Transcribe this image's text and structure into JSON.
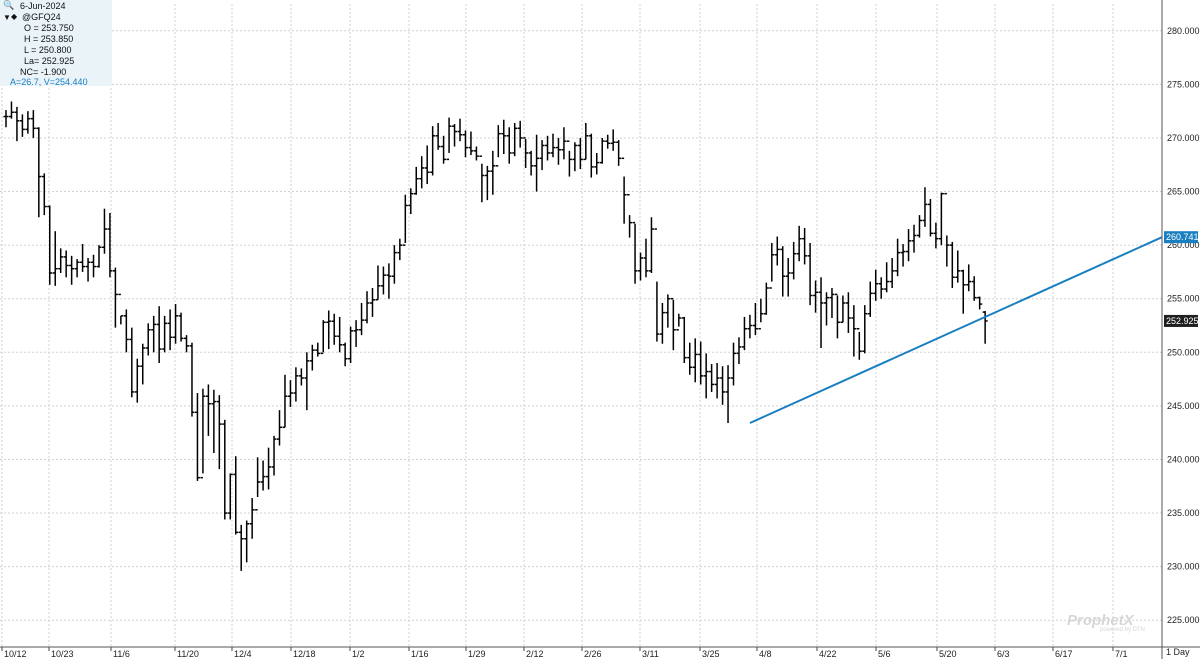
{
  "info": {
    "date": "6-Jun-2024",
    "symbol": "@GFQ24",
    "open": "O = 253.750",
    "high": "H = 253.850",
    "low": "L = 250.800",
    "last": "La= 252.925",
    "net_change": "NC= -1.900",
    "stats": "A=26.7, V=254.440"
  },
  "branding": {
    "name": "ProphetX",
    "sub": "powered by DTN"
  },
  "interval_label": "1 Day",
  "colors": {
    "bars": "#000000",
    "trendline": "#1a7fc0",
    "grid": "#d0d0d0",
    "last_price_bg": "#1f1f1f",
    "trend_label_bg": "#1a7fc0"
  },
  "chart_data": {
    "type": "ohlc",
    "title": "",
    "ylim": [
      222.5,
      282.5
    ],
    "y_ticks": [
      "225.000",
      "230.000",
      "235.000",
      "240.000",
      "245.000",
      "250.000",
      "255.000",
      "260.000",
      "265.000",
      "270.000",
      "275.000",
      "280.000"
    ],
    "x_ticks": [
      "10/12",
      "10/23",
      "11/6",
      "11/20",
      "12/4",
      "12/18",
      "1/2",
      "1/16",
      "1/29",
      "2/12",
      "2/26",
      "3/11",
      "3/25",
      "4/8",
      "4/22",
      "5/6",
      "5/20",
      "6/3",
      "6/17",
      "7/1"
    ],
    "last_price_label": "252.925",
    "trendline_label": "260.741",
    "trendline": {
      "start": {
        "bar": 136,
        "value": 243.4
      },
      "end_value": 260.741
    },
    "bars": [
      [
        272.0,
        272.6,
        271.0,
        272.0
      ],
      [
        272.0,
        273.4,
        271.8,
        272.4
      ],
      [
        272.4,
        272.9,
        269.7,
        271.6
      ],
      [
        271.6,
        272.2,
        270.1,
        270.8
      ],
      [
        270.8,
        272.5,
        270.4,
        271.8
      ],
      [
        271.8,
        272.6,
        270.0,
        270.9
      ],
      [
        270.9,
        271.0,
        262.6,
        266.4
      ],
      [
        266.4,
        266.7,
        262.8,
        263.6
      ],
      [
        263.6,
        263.7,
        256.3,
        257.4
      ],
      [
        257.4,
        261.3,
        256.2,
        257.8
      ],
      [
        257.8,
        259.7,
        257.4,
        258.9
      ],
      [
        258.9,
        259.5,
        257.0,
        258.1
      ],
      [
        258.1,
        259.0,
        256.3,
        257.8
      ],
      [
        257.8,
        258.7,
        257.0,
        258.4
      ],
      [
        258.4,
        260.1,
        257.5,
        258.0
      ],
      [
        258.0,
        258.8,
        256.6,
        258.4
      ],
      [
        258.4,
        259.1,
        257.0,
        258.0
      ],
      [
        258.0,
        260.0,
        257.9,
        259.8
      ],
      [
        259.8,
        263.4,
        259.2,
        261.5
      ],
      [
        261.5,
        263.0,
        257.0,
        257.6
      ],
      [
        257.6,
        257.9,
        252.3,
        255.4
      ],
      [
        255.4,
        253.4,
        252.6,
        253.4
      ],
      [
        253.4,
        254.0,
        250.0,
        251.2
      ],
      [
        251.2,
        252.3,
        245.8,
        246.3
      ],
      [
        246.3,
        249.4,
        245.3,
        248.7
      ],
      [
        248.7,
        250.8,
        247.0,
        250.4
      ],
      [
        250.4,
        252.7,
        249.7,
        252.1
      ],
      [
        252.1,
        253.4,
        250.0,
        252.6
      ],
      [
        252.6,
        254.3,
        249.0,
        250.3
      ],
      [
        250.3,
        253.4,
        250.0,
        252.7
      ],
      [
        252.7,
        254.0,
        250.2,
        251.4
      ],
      [
        251.4,
        254.5,
        250.8,
        253.4
      ],
      [
        253.4,
        253.7,
        251.0,
        251.3
      ],
      [
        251.3,
        251.6,
        250.0,
        250.6
      ],
      [
        250.6,
        250.9,
        244.0,
        244.4
      ],
      [
        244.4,
        246.2,
        238.0,
        238.3
      ],
      [
        238.3,
        246.6,
        238.7,
        245.9
      ],
      [
        245.9,
        247.0,
        242.2,
        245.2
      ],
      [
        245.2,
        246.5,
        240.6,
        245.4
      ],
      [
        245.4,
        246.0,
        239.1,
        243.3
      ],
      [
        243.3,
        243.7,
        234.4,
        235.0
      ],
      [
        235.0,
        238.7,
        234.4,
        238.6
      ],
      [
        238.6,
        240.3,
        233.0,
        233.2
      ],
      [
        233.2,
        233.9,
        229.6,
        232.6
      ],
      [
        232.6,
        234.3,
        230.4,
        234.0
      ],
      [
        234.0,
        236.4,
        232.6,
        235.3
      ],
      [
        235.3,
        240.2,
        236.5,
        237.9
      ],
      [
        237.9,
        239.9,
        237.1,
        238.4
      ],
      [
        238.4,
        241.1,
        237.2,
        239.3
      ],
      [
        239.3,
        242.2,
        238.5,
        241.9
      ],
      [
        241.9,
        244.6,
        241.3,
        243.0
      ],
      [
        243.0,
        247.9,
        243.0,
        245.9
      ],
      [
        245.9,
        247.4,
        244.9,
        246.2
      ],
      [
        246.2,
        248.6,
        245.4,
        247.8
      ],
      [
        247.8,
        248.5,
        246.9,
        247.6
      ],
      [
        247.6,
        250.0,
        244.6,
        249.2
      ],
      [
        249.2,
        250.7,
        248.3,
        250.2
      ],
      [
        250.2,
        250.9,
        249.6,
        249.9
      ],
      [
        249.9,
        253.0,
        250.0,
        252.8
      ],
      [
        252.8,
        253.9,
        250.3,
        252.9
      ],
      [
        252.9,
        253.6,
        250.7,
        251.5
      ],
      [
        251.5,
        253.3,
        250.0,
        250.7
      ],
      [
        250.7,
        250.9,
        248.7,
        249.4
      ],
      [
        249.4,
        252.4,
        249.0,
        252.0
      ],
      [
        252.0,
        253.0,
        250.5,
        252.1
      ],
      [
        252.1,
        254.6,
        251.6,
        253.0
      ],
      [
        253.0,
        255.7,
        252.7,
        254.6
      ],
      [
        254.6,
        256.0,
        253.3,
        254.9
      ],
      [
        254.9,
        258.1,
        254.9,
        256.2
      ],
      [
        256.2,
        258.0,
        255.4,
        257.2
      ],
      [
        257.2,
        258.3,
        255.0,
        257.1
      ],
      [
        257.1,
        260.0,
        256.4,
        259.3
      ],
      [
        259.3,
        260.6,
        258.6,
        260.0
      ],
      [
        260.0,
        264.7,
        260.2,
        263.7
      ],
      [
        263.7,
        265.3,
        262.9,
        264.8
      ],
      [
        264.8,
        267.3,
        264.7,
        266.2
      ],
      [
        266.2,
        268.3,
        265.3,
        267.2
      ],
      [
        267.2,
        269.3,
        265.7,
        266.8
      ],
      [
        266.8,
        271.1,
        266.5,
        270.2
      ],
      [
        270.2,
        271.4,
        268.9,
        269.2
      ],
      [
        269.2,
        270.2,
        267.6,
        268.0
      ],
      [
        268.0,
        271.9,
        268.6,
        271.1
      ],
      [
        271.1,
        271.3,
        269.2,
        270.6
      ],
      [
        270.6,
        271.8,
        269.7,
        270.3
      ],
      [
        270.3,
        270.7,
        268.2,
        269.1
      ],
      [
        269.1,
        270.6,
        268.4,
        268.8
      ],
      [
        268.8,
        269.2,
        267.9,
        268.3
      ],
      [
        268.3,
        267.6,
        264.0,
        266.5
      ],
      [
        266.5,
        267.4,
        264.2,
        266.9
      ],
      [
        266.9,
        268.8,
        264.7,
        267.4
      ],
      [
        267.4,
        271.2,
        268.2,
        270.4
      ],
      [
        270.4,
        271.7,
        268.5,
        270.2
      ],
      [
        270.2,
        271.0,
        267.6,
        268.6
      ],
      [
        268.6,
        271.4,
        268.3,
        270.9
      ],
      [
        270.9,
        271.6,
        269.1,
        270.0
      ],
      [
        270.0,
        269.9,
        267.2,
        268.6
      ],
      [
        268.6,
        268.8,
        266.5,
        267.4
      ],
      [
        267.4,
        270.3,
        265.0,
        268.1
      ],
      [
        268.1,
        269.8,
        267.0,
        269.3
      ],
      [
        269.3,
        270.2,
        267.9,
        268.6
      ],
      [
        268.6,
        270.4,
        268.2,
        269.1
      ],
      [
        269.1,
        270.0,
        267.5,
        268.9
      ],
      [
        268.9,
        271.0,
        268.0,
        269.7
      ],
      [
        269.7,
        268.8,
        266.4,
        268.0
      ],
      [
        268.0,
        269.6,
        266.9,
        269.3
      ],
      [
        269.3,
        270.0,
        267.1,
        268.0
      ],
      [
        268.0,
        271.4,
        268.0,
        270.2
      ],
      [
        270.2,
        270.4,
        266.3,
        267.3
      ],
      [
        267.3,
        268.6,
        266.6,
        267.7
      ],
      [
        267.7,
        270.0,
        267.6,
        269.7
      ],
      [
        269.7,
        270.3,
        269.0,
        269.5
      ],
      [
        269.5,
        270.8,
        268.8,
        269.6
      ],
      [
        269.6,
        269.8,
        267.4,
        268.1
      ],
      [
        268.1,
        266.4,
        262.0,
        264.7
      ],
      [
        264.7,
        262.8,
        260.7,
        262.1
      ],
      [
        262.1,
        262.0,
        256.4,
        257.6
      ],
      [
        257.6,
        259.3,
        256.7,
        258.8
      ],
      [
        258.8,
        260.6,
        257.0,
        257.6
      ],
      [
        257.6,
        262.6,
        257.4,
        261.5
      ],
      [
        261.5,
        256.6,
        251.0,
        251.7
      ],
      [
        251.7,
        254.6,
        250.8,
        253.7
      ],
      [
        253.7,
        255.4,
        252.3,
        255.0
      ],
      [
        255.0,
        254.9,
        250.2,
        252.1
      ],
      [
        252.1,
        253.6,
        252.4,
        253.2
      ],
      [
        253.2,
        253.3,
        249.0,
        249.5
      ],
      [
        249.5,
        250.9,
        247.9,
        248.6
      ],
      [
        248.6,
        251.3,
        247.2,
        249.8
      ],
      [
        249.8,
        251.0,
        247.0,
        247.8
      ],
      [
        247.8,
        249.9,
        245.7,
        248.2
      ],
      [
        248.2,
        248.9,
        246.3,
        247.0
      ],
      [
        247.0,
        249.0,
        245.7,
        247.6
      ],
      [
        247.6,
        248.7,
        245.1,
        246.3
      ],
      [
        246.3,
        248.8,
        243.4,
        247.6
      ],
      [
        247.6,
        250.9,
        246.9,
        249.9
      ],
      [
        249.9,
        251.4,
        248.9,
        250.5
      ],
      [
        250.5,
        253.3,
        250.2,
        252.2
      ],
      [
        252.2,
        253.5,
        251.3,
        252.5
      ],
      [
        252.5,
        254.6,
        251.6,
        252.2
      ],
      [
        252.2,
        255.0,
        252.8,
        253.6
      ],
      [
        253.6,
        256.5,
        253.5,
        256.0
      ],
      [
        256.0,
        260.2,
        256.6,
        259.1
      ],
      [
        259.1,
        260.8,
        258.1,
        259.6
      ],
      [
        259.6,
        259.9,
        255.2,
        257.1
      ],
      [
        257.1,
        258.8,
        255.2,
        257.4
      ],
      [
        257.4,
        260.3,
        256.8,
        259.2
      ],
      [
        259.2,
        261.8,
        258.5,
        260.6
      ],
      [
        260.6,
        261.6,
        258.2,
        259.0
      ],
      [
        259.0,
        260.2,
        254.4,
        255.3
      ],
      [
        255.3,
        256.7,
        253.7,
        255.6
      ],
      [
        255.6,
        257.0,
        250.4,
        254.6
      ],
      [
        254.6,
        255.6,
        252.5,
        255.1
      ],
      [
        255.1,
        256.0,
        253.2,
        255.4
      ],
      [
        255.4,
        255.3,
        251.3,
        252.8
      ],
      [
        252.8,
        255.3,
        252.8,
        254.6
      ],
      [
        254.6,
        255.6,
        251.8,
        253.2
      ],
      [
        253.2,
        254.4,
        249.6,
        252.2
      ],
      [
        252.2,
        251.9,
        249.3,
        250.1
      ],
      [
        250.1,
        254.4,
        249.9,
        253.6
      ],
      [
        253.6,
        256.6,
        253.3,
        255.5
      ],
      [
        255.5,
        257.7,
        254.8,
        256.4
      ],
      [
        256.4,
        257.0,
        255.0,
        255.9
      ],
      [
        255.9,
        258.4,
        255.6,
        256.6
      ],
      [
        256.6,
        258.8,
        256.0,
        257.6
      ],
      [
        257.6,
        260.6,
        257.1,
        259.3
      ],
      [
        259.3,
        260.1,
        258.0,
        259.4
      ],
      [
        259.4,
        261.5,
        258.5,
        260.4
      ],
      [
        260.4,
        261.9,
        259.3,
        260.9
      ],
      [
        260.9,
        262.8,
        260.7,
        262.3
      ],
      [
        262.3,
        265.4,
        261.7,
        263.8
      ],
      [
        263.8,
        264.3,
        260.8,
        261.1
      ],
      [
        261.1,
        262.1,
        259.7,
        260.6
      ],
      [
        260.6,
        264.9,
        260.0,
        264.8
      ],
      [
        264.8,
        260.9,
        258.0,
        260.0
      ],
      [
        260.0,
        260.3,
        256.0,
        257.0
      ],
      [
        257.0,
        259.5,
        256.5,
        257.6
      ],
      [
        257.6,
        257.7,
        253.6,
        256.3
      ],
      [
        256.3,
        258.2,
        255.7,
        256.6
      ],
      [
        256.6,
        257.1,
        254.8,
        255.1
      ],
      [
        255.1,
        255.2,
        254.0,
        254.5
      ],
      [
        253.75,
        253.85,
        250.8,
        252.925
      ]
    ]
  }
}
